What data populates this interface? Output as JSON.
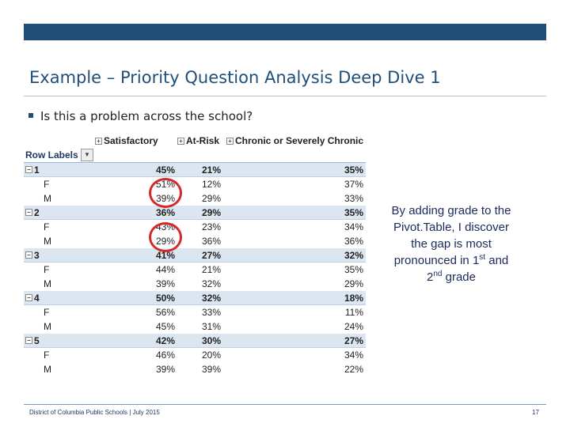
{
  "title": "Example – Priority Question Analysis Deep Dive 1",
  "bullet": "Is this a problem across the school?",
  "pivot": {
    "headers": [
      "Satisfactory",
      "At-Risk",
      "Chronic or Severely Chronic"
    ],
    "row_labels_header": "Row Labels",
    "expand_glyph": "+",
    "collapse_glyph": "−",
    "filter_glyph": "▼",
    "rows": [
      {
        "label": "1",
        "level": "parent",
        "values": [
          "45%",
          "21%",
          "35%"
        ]
      },
      {
        "label": "F",
        "level": "child",
        "values": [
          "51%",
          "12%",
          "37%"
        ]
      },
      {
        "label": "M",
        "level": "child",
        "values": [
          "39%",
          "29%",
          "33%"
        ]
      },
      {
        "label": "2",
        "level": "parent",
        "values": [
          "36%",
          "29%",
          "35%"
        ]
      },
      {
        "label": "F",
        "level": "child",
        "values": [
          "43%",
          "23%",
          "34%"
        ]
      },
      {
        "label": "M",
        "level": "child",
        "values": [
          "29%",
          "36%",
          "36%"
        ]
      },
      {
        "label": "3",
        "level": "parent",
        "values": [
          "41%",
          "27%",
          "32%"
        ]
      },
      {
        "label": "F",
        "level": "child",
        "values": [
          "44%",
          "21%",
          "35%"
        ]
      },
      {
        "label": "M",
        "level": "child",
        "values": [
          "39%",
          "32%",
          "29%"
        ]
      },
      {
        "label": "4",
        "level": "parent",
        "values": [
          "50%",
          "32%",
          "18%"
        ]
      },
      {
        "label": "F",
        "level": "child",
        "values": [
          "56%",
          "33%",
          "11%"
        ]
      },
      {
        "label": "M",
        "level": "child",
        "values": [
          "45%",
          "31%",
          "24%"
        ]
      },
      {
        "label": "5",
        "level": "parent",
        "values": [
          "42%",
          "30%",
          "27%"
        ]
      },
      {
        "label": "F",
        "level": "child",
        "values": [
          "46%",
          "20%",
          "34%"
        ]
      },
      {
        "label": "M",
        "level": "child",
        "values": [
          "39%",
          "39%",
          "22%"
        ]
      }
    ]
  },
  "callout": {
    "line1": "By adding grade to the Pivot.Table, I discover the gap is most pronounced in",
    "n1": "1",
    "sup1": "st",
    "and_text": "and",
    "n2": "2",
    "sup2": "nd",
    "tail": "grade"
  },
  "footer": {
    "left": "District of Columbia Public Schools | July 2015",
    "page": "17"
  },
  "colors": {
    "accent": "#1f4e79",
    "parent_row": "#dce6f1",
    "highlight_circle": "#d62828"
  }
}
